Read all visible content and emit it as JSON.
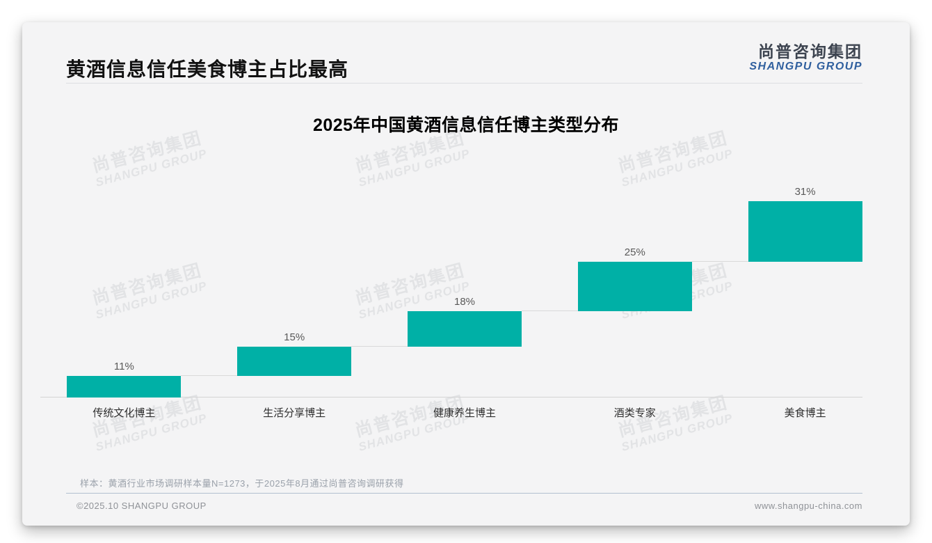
{
  "page": {
    "title": "黄酒信息信任美食博主占比最高",
    "sample_note": "样本：黄酒行业市场调研样本量N=1273，于2025年8月通过尚普咨询调研获得",
    "footer_left": "©2025.10 SHANGPU GROUP",
    "footer_right": "www.shangpu-china.com"
  },
  "logo": {
    "cn": "尚普咨询集团",
    "en": "SHANGPU GROUP"
  },
  "watermark": {
    "cn": "尚普咨询集团",
    "en": "SHANGPU GROUP"
  },
  "chart_data": {
    "type": "bar",
    "subtype": "cumulative-waterfall",
    "title": "2025年中国黄酒信息信任博主类型分布",
    "categories": [
      "传统文化博主",
      "生活分享博主",
      "健康养生博主",
      "酒类专家",
      "美食博主"
    ],
    "values": [
      11,
      15,
      18,
      25,
      31
    ],
    "data_labels": [
      "11%",
      "15%",
      "18%",
      "25%",
      "31%"
    ],
    "unit": "%",
    "ylim": [
      0,
      100
    ],
    "grid": "off",
    "legend": "none",
    "bar_color": "#00b0a6",
    "connector_color": "#d9d9d9",
    "axis_color": "#d4d4d4",
    "data_label_color": "#595959",
    "category_label_color": "#2e2e2e"
  }
}
